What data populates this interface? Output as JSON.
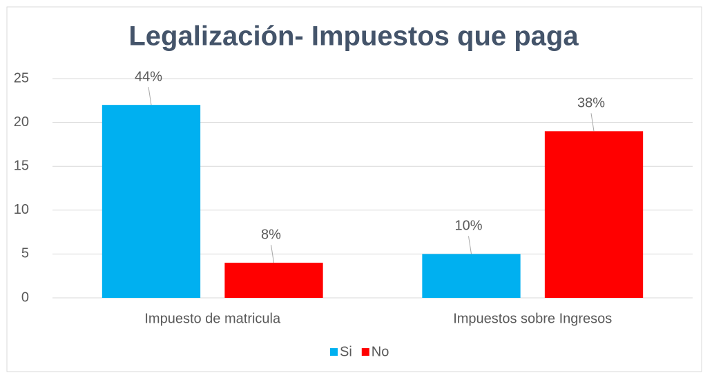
{
  "chart_data": {
    "type": "bar",
    "title": "Legalización- Impuestos que paga",
    "categories": [
      "Impuesto de matricula",
      "Impuestos sobre Ingresos"
    ],
    "series": [
      {
        "name": "Si",
        "color": "#00b0f0",
        "values": [
          22,
          5
        ],
        "value_labels": [
          "44%",
          "10%"
        ]
      },
      {
        "name": "No",
        "color": "#ff0000",
        "values": [
          4,
          19
        ],
        "value_labels": [
          "8%",
          "38%"
        ]
      }
    ],
    "ylim": [
      0,
      25
    ],
    "yticks": [
      0,
      5,
      10,
      15,
      20,
      25
    ],
    "grid": true,
    "legend": "bottom"
  }
}
